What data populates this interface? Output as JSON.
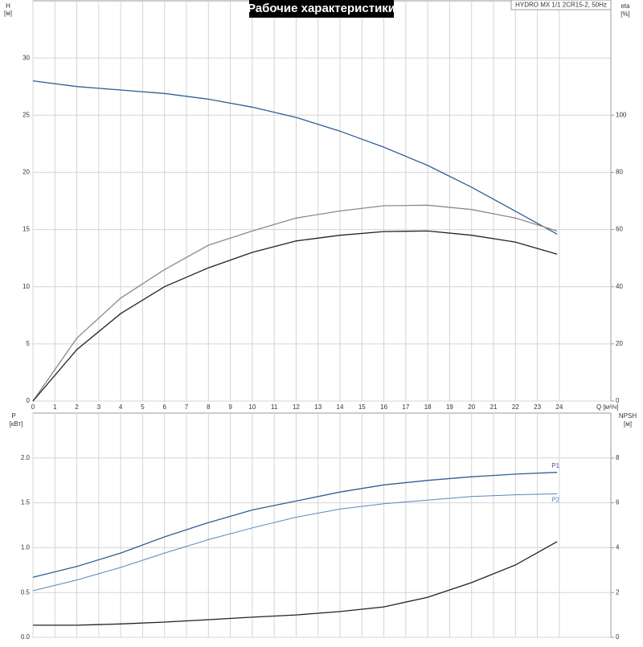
{
  "chart_data": [
    {
      "type": "line",
      "title": "Рабочие характеристики",
      "subtitle": "HYDRO MX 1/1 2CR15-2, 50Hz",
      "ylabel": "H",
      "yunit": "[м]",
      "y2label": "eta",
      "y2unit": "[%]",
      "xlabel": "Q [м³/ч]",
      "x": [
        0,
        2,
        4,
        6,
        8,
        10,
        12,
        14,
        16,
        18,
        20,
        22,
        23.9
      ],
      "xlim": [
        0,
        26.35
      ],
      "xticks": [
        0,
        1,
        2,
        3,
        4,
        5,
        6,
        7,
        8,
        9,
        10,
        11,
        12,
        13,
        14,
        15,
        16,
        17,
        18,
        19,
        20,
        21,
        22,
        23,
        24
      ],
      "ylim": [
        0,
        35
      ],
      "yticks": [
        0,
        5,
        10,
        15,
        20,
        25,
        30
      ],
      "y2lim": [
        0,
        140
      ],
      "y2ticks": [
        0,
        20,
        40,
        60,
        80,
        100
      ],
      "grid": true,
      "series": [
        {
          "color": "#2f5f95",
          "values": [
            28.0,
            27.5,
            27.2,
            26.9,
            26.4,
            25.7,
            24.8,
            23.6,
            22.2,
            20.6,
            18.7,
            16.6,
            14.6
          ]
        },
        {
          "color": "#8a8a8a",
          "axis": "y2",
          "values": [
            0,
            22,
            36,
            46,
            54.5,
            59.5,
            64,
            66.5,
            68.3,
            68.5,
            67,
            64,
            59.5
          ]
        },
        {
          "color": "#222222",
          "axis": "y2",
          "values": [
            0,
            18,
            30.6,
            40,
            46.6,
            52,
            56,
            58,
            59.3,
            59.5,
            58,
            55.6,
            51.4
          ]
        }
      ]
    },
    {
      "type": "line",
      "ylabel": "P",
      "yunit": "[кВт]",
      "y2label": "NPSH",
      "y2unit": "[м]",
      "x": [
        0,
        2,
        4,
        6,
        8,
        10,
        12,
        14,
        16,
        18,
        20,
        22,
        23.9
      ],
      "xlim": [
        0,
        26.35
      ],
      "ylim": [
        0,
        2.5
      ],
      "yticks": [
        {
          "value": 0,
          "label": "0.0"
        },
        0.5,
        {
          "value": 1,
          "label": "1.0"
        },
        1.5,
        {
          "value": 2,
          "label": "2.0"
        }
      ],
      "y2lim": [
        0,
        10
      ],
      "y2ticks": [
        0,
        2,
        4,
        6,
        8
      ],
      "grid": true,
      "series": [
        {
          "name": "P1",
          "color": "#2f5f95",
          "values": [
            0.67,
            0.79,
            0.94,
            1.12,
            1.28,
            1.42,
            1.52,
            1.62,
            1.7,
            1.75,
            1.79,
            1.82,
            1.84
          ]
        },
        {
          "name": "P2",
          "color": "#5a86bb",
          "values": [
            0.52,
            0.64,
            0.78,
            0.94,
            1.09,
            1.22,
            1.34,
            1.43,
            1.49,
            1.53,
            1.57,
            1.59,
            1.6
          ]
        },
        {
          "color": "#222222",
          "axis": "y2",
          "values": [
            0.54,
            0.54,
            0.6,
            0.68,
            0.79,
            0.9,
            1.0,
            1.15,
            1.36,
            1.79,
            2.44,
            3.23,
            4.27
          ]
        }
      ]
    }
  ]
}
